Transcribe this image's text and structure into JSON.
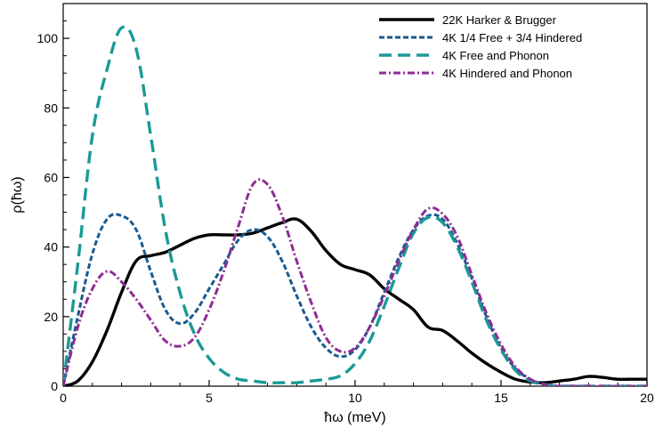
{
  "chart_data": {
    "type": "line",
    "title": "",
    "xlabel": "ħω (meV)",
    "ylabel": "ρ(ħω)",
    "xlim": [
      0,
      20
    ],
    "ylim": [
      0,
      110
    ],
    "x_ticks": [
      0,
      5,
      10,
      15,
      20
    ],
    "y_ticks": [
      0,
      20,
      40,
      60,
      80,
      100
    ],
    "x_tick_labels": [
      "0",
      "5",
      "10",
      "15",
      "20"
    ],
    "y_tick_labels": [
      "0",
      "20",
      "40",
      "60",
      "80",
      "100"
    ],
    "grid": false,
    "legend_position": "top-right",
    "series": [
      {
        "name": "22K Harker & Brugger",
        "color": "#000000",
        "dash": "solid",
        "points": [
          [
            0,
            0
          ],
          [
            0.5,
            1.5
          ],
          [
            1,
            7
          ],
          [
            1.5,
            16
          ],
          [
            2,
            27
          ],
          [
            2.5,
            36
          ],
          [
            3,
            37.5
          ],
          [
            3.5,
            38.5
          ],
          [
            4,
            40.5
          ],
          [
            4.5,
            42.5
          ],
          [
            5,
            43.5
          ],
          [
            5.5,
            43.5
          ],
          [
            6,
            43.5
          ],
          [
            6.5,
            44
          ],
          [
            7,
            45.5
          ],
          [
            7.5,
            47
          ],
          [
            8,
            48
          ],
          [
            8.5,
            44.5
          ],
          [
            9,
            39
          ],
          [
            9.5,
            35
          ],
          [
            10,
            33.5
          ],
          [
            10.5,
            32
          ],
          [
            11,
            28
          ],
          [
            11.5,
            25
          ],
          [
            12,
            22
          ],
          [
            12.5,
            17
          ],
          [
            13,
            16
          ],
          [
            13.5,
            13
          ],
          [
            14,
            9.5
          ],
          [
            14.5,
            6.5
          ],
          [
            15,
            4
          ],
          [
            15.5,
            2
          ],
          [
            16,
            1.2
          ],
          [
            16.5,
            1
          ],
          [
            17,
            1.5
          ],
          [
            17.5,
            2
          ],
          [
            18,
            2.8
          ],
          [
            18.5,
            2.5
          ],
          [
            19,
            2
          ],
          [
            19.5,
            2
          ],
          [
            20,
            2
          ]
        ]
      },
      {
        "name": "4K 1/4 Free + 3/4 Hindered",
        "color": "#1b5a8f",
        "dash": "short-dash",
        "points": [
          [
            0,
            0
          ],
          [
            0.5,
            20
          ],
          [
            1,
            38
          ],
          [
            1.5,
            48
          ],
          [
            2,
            49
          ],
          [
            2.5,
            45
          ],
          [
            3,
            33
          ],
          [
            3.5,
            22
          ],
          [
            4,
            18
          ],
          [
            4.5,
            21
          ],
          [
            5,
            28
          ],
          [
            5.5,
            35
          ],
          [
            6,
            42
          ],
          [
            6.5,
            45
          ],
          [
            7,
            43
          ],
          [
            7.5,
            36
          ],
          [
            8,
            26
          ],
          [
            8.5,
            17
          ],
          [
            9,
            11
          ],
          [
            9.5,
            8.5
          ],
          [
            10,
            10.5
          ],
          [
            10.5,
            17
          ],
          [
            11,
            27
          ],
          [
            11.5,
            37
          ],
          [
            12,
            45
          ],
          [
            12.5,
            49
          ],
          [
            13,
            48
          ],
          [
            13.5,
            41
          ],
          [
            14,
            31
          ],
          [
            14.5,
            20
          ],
          [
            15,
            11
          ],
          [
            15.5,
            5
          ],
          [
            16,
            2
          ],
          [
            16.5,
            0.5
          ],
          [
            17,
            0
          ],
          [
            18,
            0
          ],
          [
            20,
            0
          ]
        ]
      },
      {
        "name": "4K Free and Phonon",
        "color": "#1a9a96",
        "dash": "long-dash",
        "points": [
          [
            0,
            0
          ],
          [
            0.5,
            35
          ],
          [
            1,
            72
          ],
          [
            1.5,
            91
          ],
          [
            2,
            103
          ],
          [
            2.5,
            97
          ],
          [
            3,
            72
          ],
          [
            3.5,
            45
          ],
          [
            4,
            27
          ],
          [
            4.5,
            15
          ],
          [
            5,
            8
          ],
          [
            5.5,
            4
          ],
          [
            6,
            2
          ],
          [
            6.5,
            1.5
          ],
          [
            7,
            1
          ],
          [
            7.5,
            1
          ],
          [
            8,
            1
          ],
          [
            8.5,
            1.5
          ],
          [
            9,
            2
          ],
          [
            9.5,
            3
          ],
          [
            10,
            6.5
          ],
          [
            10.5,
            13
          ],
          [
            11,
            23
          ],
          [
            11.5,
            34
          ],
          [
            12,
            44
          ],
          [
            12.5,
            48.5
          ],
          [
            13,
            47
          ],
          [
            13.5,
            40
          ],
          [
            14,
            30
          ],
          [
            14.5,
            19
          ],
          [
            15,
            10.5
          ],
          [
            15.5,
            4.5
          ],
          [
            16,
            1.5
          ],
          [
            16.5,
            0.5
          ],
          [
            17,
            0
          ],
          [
            18,
            0
          ],
          [
            20,
            0
          ]
        ]
      },
      {
        "name": "4K Hindered and Phonon",
        "color": "#8e2c94",
        "dash": "dash-dot",
        "points": [
          [
            0,
            0
          ],
          [
            0.5,
            17
          ],
          [
            1,
            28
          ],
          [
            1.5,
            33
          ],
          [
            2,
            30
          ],
          [
            2.5,
            25
          ],
          [
            3,
            19
          ],
          [
            3.5,
            13
          ],
          [
            4,
            11.5
          ],
          [
            4.5,
            14
          ],
          [
            5,
            22
          ],
          [
            5.5,
            33
          ],
          [
            6,
            46
          ],
          [
            6.5,
            58
          ],
          [
            7,
            58
          ],
          [
            7.5,
            49
          ],
          [
            8,
            36
          ],
          [
            8.5,
            24
          ],
          [
            9,
            14
          ],
          [
            9.5,
            10
          ],
          [
            10,
            11
          ],
          [
            10.5,
            17
          ],
          [
            11,
            26
          ],
          [
            11.5,
            36
          ],
          [
            12,
            45
          ],
          [
            12.5,
            51
          ],
          [
            13,
            49.5
          ],
          [
            13.5,
            43
          ],
          [
            14,
            32
          ],
          [
            14.5,
            21
          ],
          [
            15,
            12
          ],
          [
            15.5,
            5.5
          ],
          [
            16,
            2
          ],
          [
            16.5,
            0.5
          ],
          [
            17,
            0
          ],
          [
            18,
            0
          ],
          [
            20,
            0
          ]
        ]
      }
    ]
  }
}
